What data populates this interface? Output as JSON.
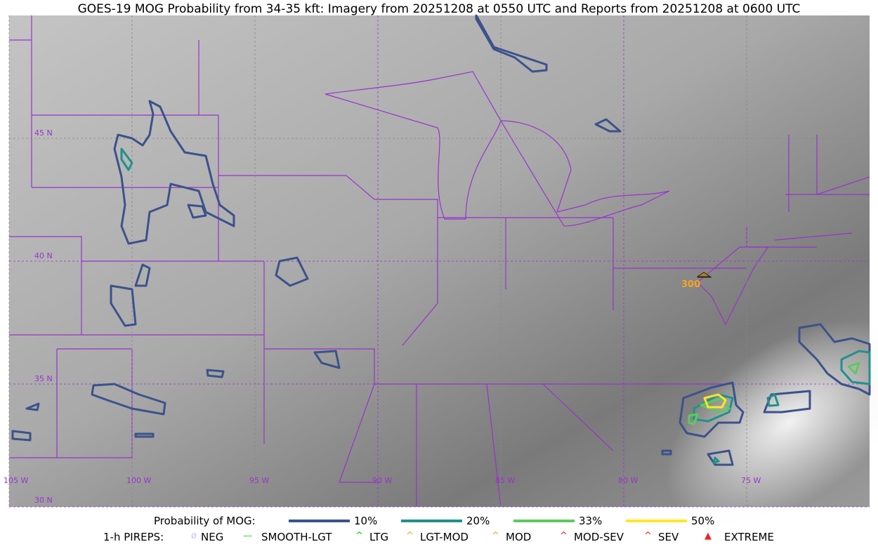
{
  "title": "GOES-19 MOG Probability from 34-35 kft: Imagery from 20251208 at 0550 UTC and Reports from 20251208 at 0600 UTC",
  "map": {
    "lon_labels": [
      "105 W",
      "100 W",
      "95 W",
      "90 W",
      "85 W",
      "80 W",
      "75 W"
    ],
    "lat_labels": [
      "45 N",
      "40 N",
      "35 N",
      "30 N"
    ],
    "grid_color": "#9933cc",
    "border_color": "#9933cc",
    "pirep_reports": [
      {
        "type": "LGT-MOD",
        "altitude_label": "300",
        "color": "#f5a623"
      }
    ]
  },
  "legend": {
    "prob_title": "Probability of MOG:",
    "prob_levels": [
      {
        "label": "10%",
        "color": "#3b528b"
      },
      {
        "label": "20%",
        "color": "#21918c"
      },
      {
        "label": "33%",
        "color": "#5ec962"
      },
      {
        "label": "50%",
        "color": "#fde725"
      }
    ],
    "pirep_title": "1-h PIREPS:",
    "pireps": [
      {
        "label": "NEG",
        "color": "#c8c8ff",
        "icon": "neg-circle-icon"
      },
      {
        "label": "SMOOTH-LGT",
        "color": "#22dd22",
        "icon": "line-icon"
      },
      {
        "label": "LTG",
        "color": "#00dd00",
        "icon": "caret-icon"
      },
      {
        "label": "LGT-MOD",
        "color": "#f5a623",
        "icon": "caret-bar-icon"
      },
      {
        "label": "MOD",
        "color": "#f5a623",
        "icon": "caret-icon"
      },
      {
        "label": "MOD-SEV",
        "color": "#ee2222",
        "icon": "double-caret-bar-icon"
      },
      {
        "label": "SEV",
        "color": "#ee2222",
        "icon": "double-caret-icon"
      },
      {
        "label": "EXTREME",
        "color": "#ee2222",
        "icon": "filled-triangle-icon"
      }
    ]
  }
}
